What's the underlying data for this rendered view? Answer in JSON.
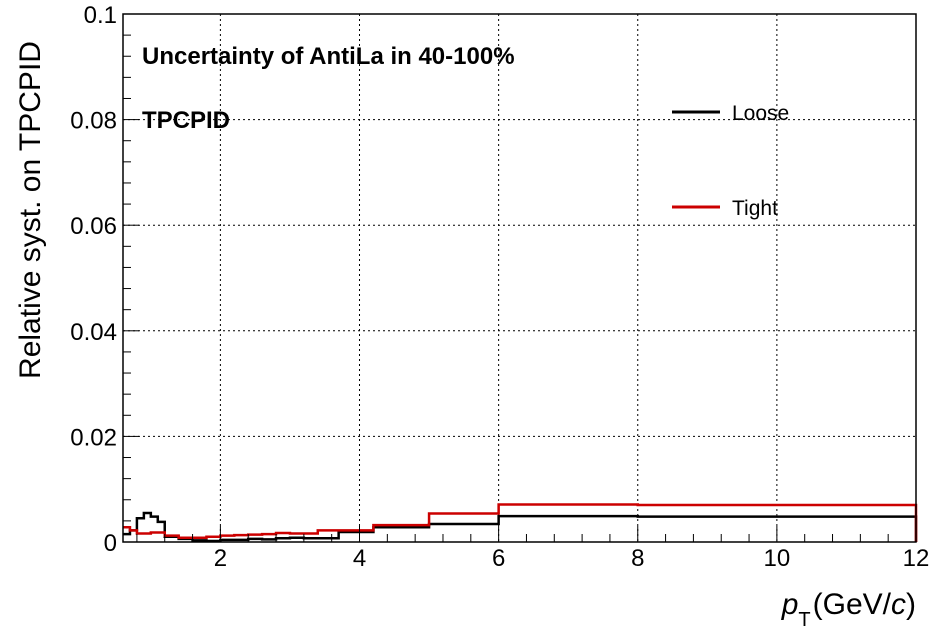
{
  "chart_data": {
    "type": "line",
    "ylabel": "Relative syst. on TPCPID",
    "xlabel": {
      "p": "p",
      "sub": "T",
      "unit_pre": "(GeV/",
      "unit_c": "c",
      "unit_post": ")"
    },
    "annotations": [
      "Uncertainty of AntiLa in 40-100%",
      "TPCPID"
    ],
    "xlim": [
      0.6,
      12
    ],
    "ylim": [
      0,
      0.1
    ],
    "x_ticks": [
      2,
      4,
      6,
      8,
      10,
      12
    ],
    "x_tick_labels": [
      "2",
      "4",
      "6",
      "8",
      "10",
      "12"
    ],
    "y_ticks": [
      0,
      0.02,
      0.04,
      0.06,
      0.08,
      0.1
    ],
    "y_tick_labels": [
      "0",
      "0.02",
      "0.04",
      "0.06",
      "0.08",
      "0.1"
    ],
    "grid": true,
    "legend_position": "top-right",
    "series": [
      {
        "name": "Loose",
        "color": "#000000",
        "bin_edges": [
          0.6,
          0.7,
          0.8,
          0.9,
          1.0,
          1.1,
          1.2,
          1.4,
          1.6,
          1.8,
          2.0,
          2.2,
          2.4,
          2.6,
          2.8,
          3.0,
          3.2,
          3.4,
          3.7,
          4.2,
          5.0,
          6.0,
          8.0,
          12.0
        ],
        "values": [
          0.0015,
          0.0022,
          0.0045,
          0.0055,
          0.0048,
          0.0038,
          0.001,
          0.0006,
          0.0003,
          0.0002,
          0.0004,
          0.0004,
          0.0006,
          0.0005,
          0.0007,
          0.0008,
          0.0007,
          0.0007,
          0.0019,
          0.0028,
          0.0034,
          0.0049,
          0.0048,
          0.0
        ]
      },
      {
        "name": "Tight",
        "color": "#cc0000",
        "bin_edges": [
          0.6,
          0.7,
          0.8,
          0.9,
          1.0,
          1.1,
          1.2,
          1.4,
          1.6,
          1.8,
          2.0,
          2.2,
          2.4,
          2.6,
          2.8,
          3.0,
          3.2,
          3.4,
          3.7,
          4.2,
          5.0,
          6.0,
          8.0,
          12.0
        ],
        "values": [
          0.0028,
          0.0022,
          0.0016,
          0.0016,
          0.0018,
          0.0018,
          0.0012,
          0.0008,
          0.0008,
          0.001,
          0.0012,
          0.0013,
          0.0014,
          0.0015,
          0.0017,
          0.0016,
          0.0016,
          0.0022,
          0.0022,
          0.0032,
          0.0054,
          0.0071,
          0.007,
          0.0
        ]
      }
    ]
  }
}
